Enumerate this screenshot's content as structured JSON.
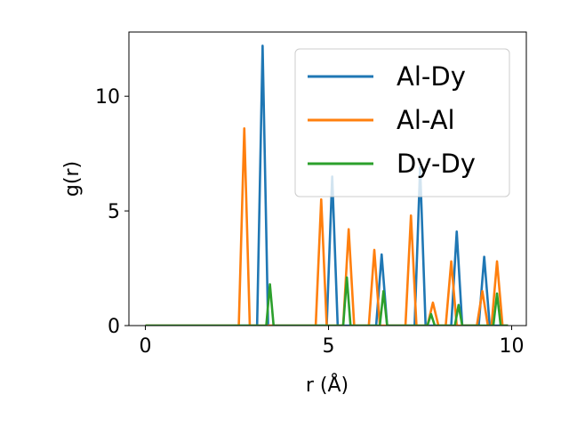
{
  "chart_data": {
    "type": "line",
    "title": "",
    "xlabel": "r (Å)",
    "ylabel": "g(r)",
    "xlim": [
      -0.45,
      10.4
    ],
    "ylim": [
      0,
      12.8
    ],
    "xticks": [
      0,
      5,
      10
    ],
    "yticks": [
      0,
      5,
      10
    ],
    "grid": false,
    "legend_position": "top-right",
    "series": [
      {
        "name": "Al-Dy",
        "color": "#1f77b4",
        "x": [
          0,
          3.05,
          3.2,
          3.35,
          4.95,
          5.1,
          5.25,
          6.3,
          6.45,
          6.6,
          7.35,
          7.5,
          7.65,
          8.35,
          8.5,
          8.65,
          9.1,
          9.25,
          9.4,
          9.9
        ],
        "y": [
          0,
          0,
          12.2,
          0,
          0,
          6.5,
          0,
          0,
          3.1,
          0,
          0,
          6.9,
          0,
          0,
          4.1,
          0,
          0,
          3.0,
          0,
          0
        ]
      },
      {
        "name": "Al-Al",
        "color": "#ff7f0e",
        "x": [
          0,
          2.55,
          2.7,
          2.85,
          4.65,
          4.8,
          4.95,
          5.4,
          5.55,
          5.7,
          6.1,
          6.25,
          6.4,
          7.1,
          7.25,
          7.4,
          7.7,
          7.85,
          8.0,
          8.2,
          8.35,
          8.5,
          9.05,
          9.2,
          9.35,
          9.45,
          9.6,
          9.75,
          9.9
        ],
        "y": [
          0,
          0,
          8.6,
          0,
          0,
          5.5,
          0,
          0,
          4.2,
          0,
          0,
          3.3,
          0,
          0,
          4.8,
          0,
          0,
          1.0,
          0,
          0,
          2.8,
          0,
          0,
          1.5,
          0,
          0,
          2.8,
          0,
          0
        ]
      },
      {
        "name": "Dy-Dy",
        "color": "#2ca02c",
        "x": [
          0,
          3.3,
          3.4,
          3.5,
          5.4,
          5.5,
          5.6,
          6.4,
          6.5,
          6.6,
          7.7,
          7.8,
          7.9,
          8.45,
          8.55,
          8.65,
          9.5,
          9.6,
          9.7,
          9.9
        ],
        "y": [
          0,
          0,
          1.8,
          0,
          0,
          2.1,
          0,
          0,
          1.5,
          0,
          0,
          0.5,
          0,
          0,
          0.9,
          0,
          0,
          1.4,
          0,
          0
        ]
      }
    ]
  }
}
